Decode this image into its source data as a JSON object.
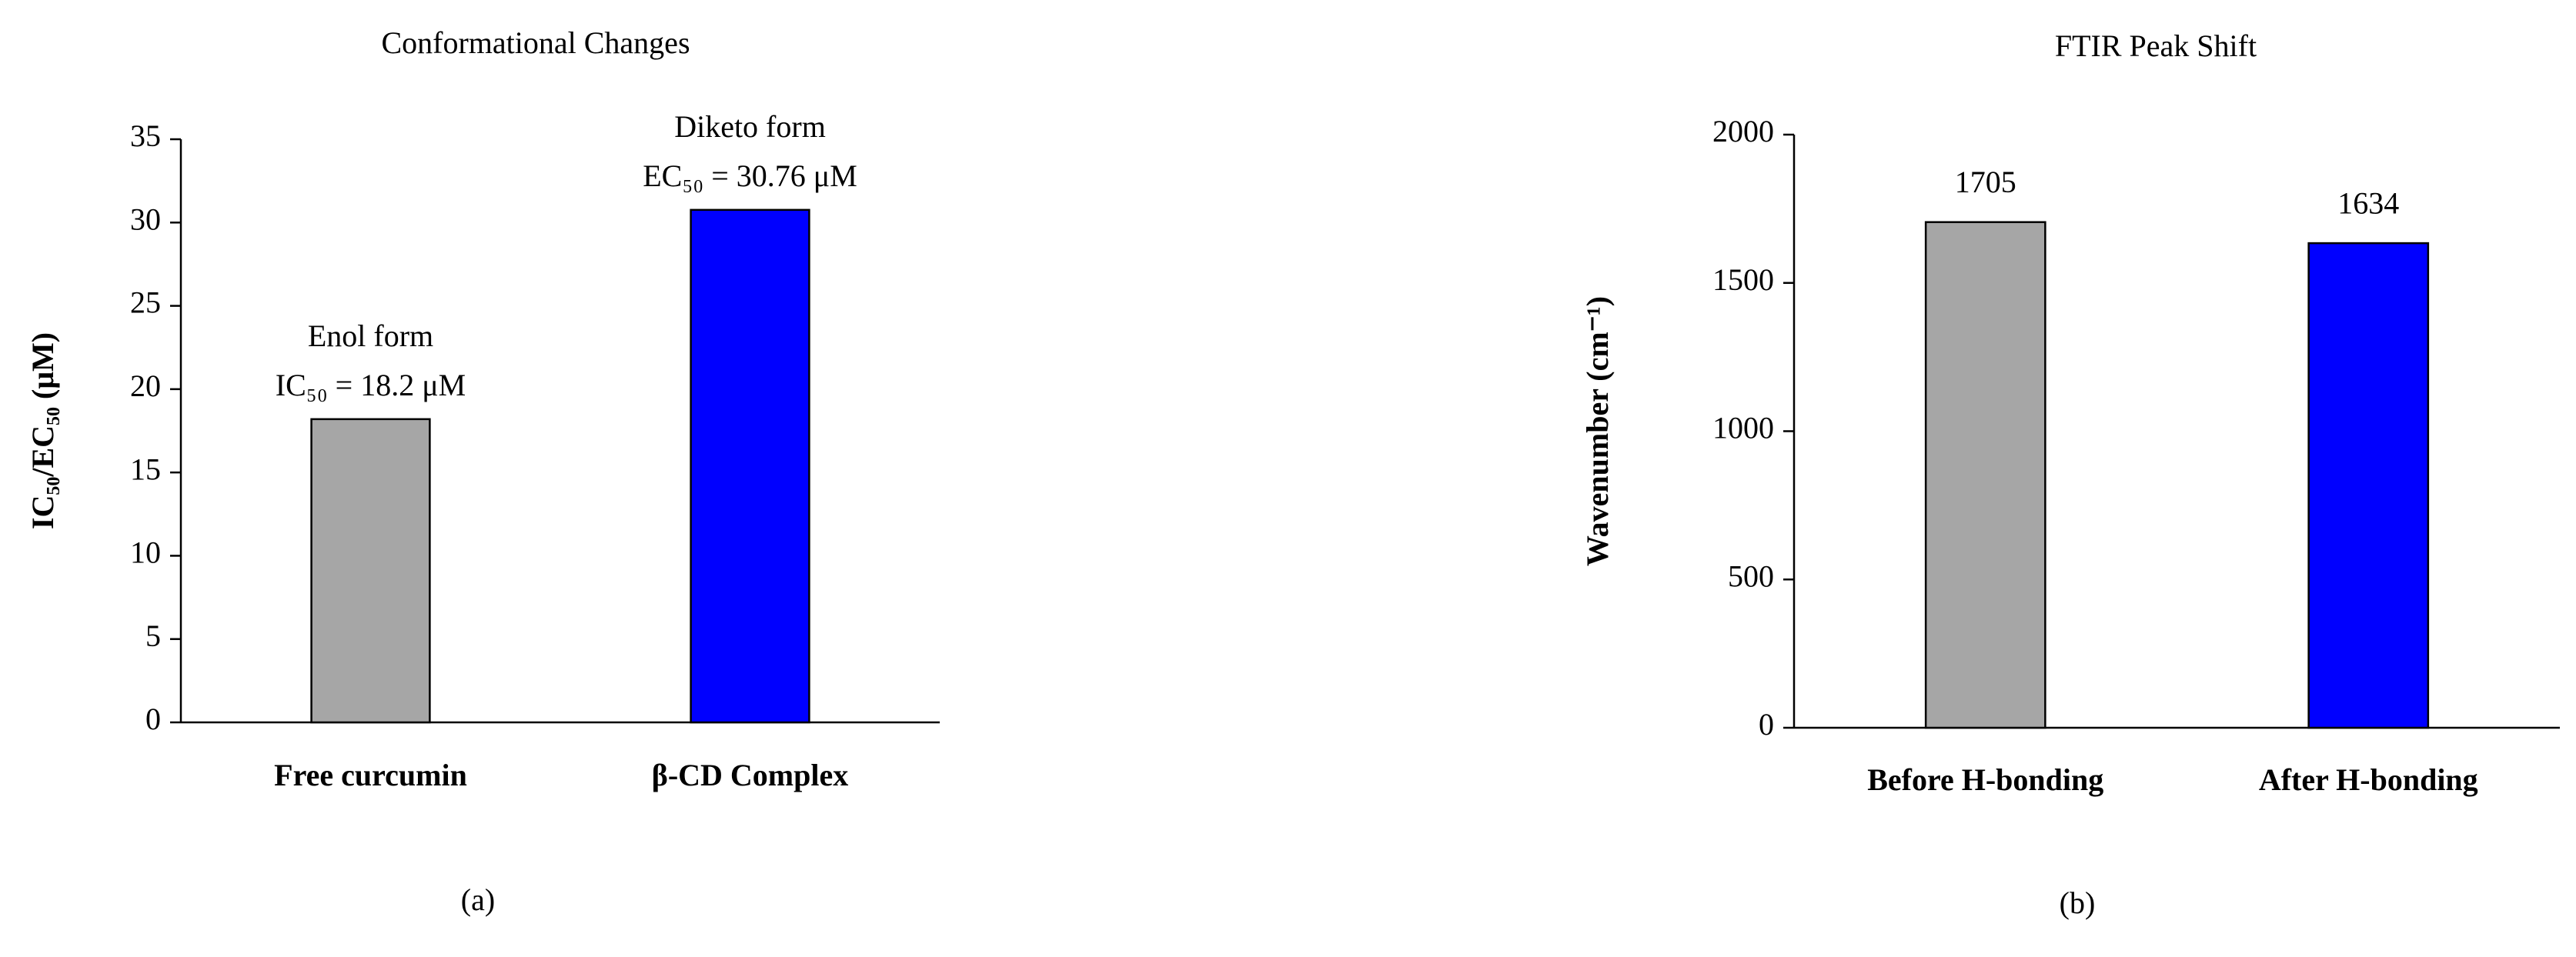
{
  "chart_data": [
    {
      "type": "bar",
      "title": "Conformational Changes",
      "y_label": "IC₅₀/EC₅₀ (μM)",
      "categories": [
        "Free curcumin",
        "β-CD Complex"
      ],
      "values": [
        18.2,
        30.76
      ],
      "colors": [
        "#a6a6a6",
        "#0000ff"
      ],
      "annotations": [
        [
          "Enol form",
          "IC₅₀ = 18.2 μM"
        ],
        [
          "Diketo form",
          "EC₅₀ = 30.76 μM"
        ]
      ],
      "ylim": [
        0,
        35
      ],
      "yticks": [
        0,
        5,
        10,
        15,
        20,
        25,
        30,
        35
      ],
      "grid": false,
      "panel_label": "(a)"
    },
    {
      "type": "bar",
      "title": "FTIR Peak Shift",
      "y_label": "Wavenumber (cm⁻¹)",
      "categories": [
        "Before H-bonding",
        "After H-bonding"
      ],
      "values": [
        1705,
        1634
      ],
      "colors": [
        "#a6a6a6",
        "#0000ff"
      ],
      "show_value_labels": true,
      "ylim": [
        0,
        2000
      ],
      "yticks": [
        0,
        500,
        1000,
        1500,
        2000
      ],
      "grid": false,
      "panel_label": "(b)"
    }
  ]
}
